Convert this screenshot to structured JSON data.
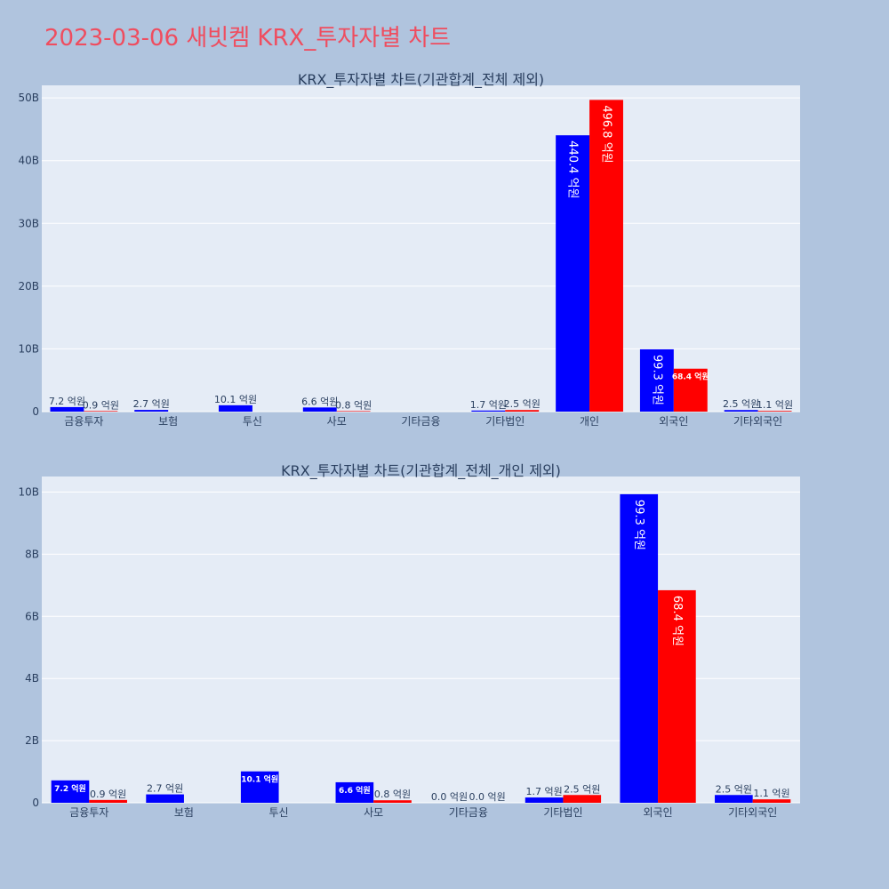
{
  "page_title": "2023-03-06 새빗켐 KRX_투자자별 차트",
  "colors": {
    "background": "#b0c4de",
    "plot_bg": "#e5ecf6",
    "buy": "#0000ff",
    "sell": "#ff0000",
    "title": "#ef4d5f",
    "text": "#2a3f5f"
  },
  "chart_data": [
    {
      "type": "bar",
      "title": "KRX_투자자별 차트(기관합계_전체 제외)",
      "categories": [
        "금융투자",
        "보험",
        "투신",
        "사모",
        "기타금융",
        "기타법인",
        "개인",
        "외국인",
        "기타외국인"
      ],
      "ylim": [
        0,
        52
      ],
      "yticks": [
        0,
        10,
        20,
        30,
        40,
        50
      ],
      "ytick_labels": [
        "0",
        "10B",
        "20B",
        "30B",
        "40B",
        "50B"
      ],
      "series": [
        {
          "color": "#0000ff",
          "values": [
            0.72,
            0.27,
            1.01,
            0.66,
            0,
            0.17,
            44.04,
            9.93,
            0.25
          ],
          "labels": [
            "7.2 억원",
            "2.7 억원",
            "10.1 억원",
            "6.6 억원",
            "",
            "1.7 억원",
            "440.4 억원",
            "99.3 억원",
            "2.5 억원"
          ]
        },
        {
          "color": "#ff0000",
          "values": [
            0.09,
            0,
            0,
            0.08,
            0,
            0.25,
            49.68,
            6.84,
            0.11
          ],
          "labels": [
            "0.9 억원",
            "",
            "",
            "0.8 억원",
            "",
            "2.5 억원",
            "496.8 억원",
            "68.4 억원",
            "1.1 억원"
          ]
        }
      ]
    },
    {
      "type": "bar",
      "title": "KRX_투자자별 차트(기관합계_전체_개인 제외)",
      "categories": [
        "금융투자",
        "보험",
        "투신",
        "사모",
        "기타금융",
        "기타법인",
        "외국인",
        "기타외국인"
      ],
      "ylim": [
        0,
        10.5
      ],
      "yticks": [
        0,
        2,
        4,
        6,
        8,
        10
      ],
      "ytick_labels": [
        "0",
        "2B",
        "4B",
        "6B",
        "8B",
        "10B"
      ],
      "series": [
        {
          "color": "#0000ff",
          "values": [
            0.72,
            0.27,
            1.01,
            0.66,
            0,
            0.17,
            9.93,
            0.25
          ],
          "labels": [
            "7.2 억원",
            "2.7 억원",
            "10.1 억원",
            "6.6 억원",
            "0.0 억원",
            "1.7 억원",
            "99.3 억원",
            "2.5 억원"
          ]
        },
        {
          "color": "#ff0000",
          "values": [
            0.09,
            0,
            0,
            0.08,
            0,
            0.25,
            6.84,
            0.11
          ],
          "labels": [
            "0.9 억원",
            "",
            "",
            "0.8 억원",
            "0.0 억원",
            "2.5 억원",
            "68.4 억원",
            "1.1 억원"
          ]
        }
      ]
    }
  ]
}
